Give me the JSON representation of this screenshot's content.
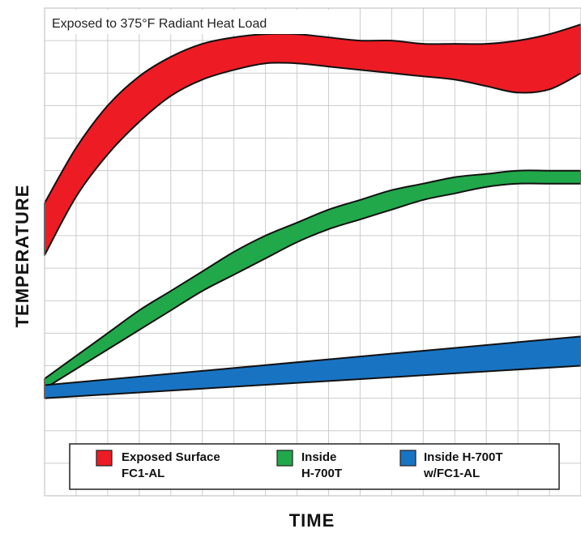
{
  "chart_data": {
    "type": "area",
    "title": "Exposed to 375°F Radiant Heat Load",
    "xlabel": "TIME",
    "ylabel": "TEMPERATURE",
    "grid": true,
    "xlim": [
      0,
      17
    ],
    "ylim": [
      0,
      15
    ],
    "legend_position": "bottom",
    "series": [
      {
        "name": "Exposed Surface FC1-AL",
        "color": "#ed1c24",
        "x": [
          0,
          1,
          2,
          3,
          4,
          5,
          6,
          7,
          8,
          9,
          10,
          11,
          12,
          13,
          14,
          15,
          16,
          17
        ],
        "upper": [
          9.0,
          10.7,
          12.0,
          12.9,
          13.5,
          13.9,
          14.1,
          14.2,
          14.2,
          14.1,
          14.0,
          14.0,
          13.9,
          13.9,
          13.9,
          14.0,
          14.2,
          14.5
        ],
        "lower": [
          7.4,
          9.2,
          10.5,
          11.5,
          12.3,
          12.8,
          13.1,
          13.3,
          13.3,
          13.2,
          13.1,
          13.0,
          12.9,
          12.8,
          12.6,
          12.4,
          12.5,
          13.0
        ]
      },
      {
        "name": "Inside H-700T",
        "color": "#21a84a",
        "x": [
          0,
          1,
          2,
          3,
          4,
          5,
          6,
          7,
          8,
          9,
          10,
          11,
          12,
          13,
          14,
          15,
          16,
          17
        ],
        "upper": [
          3.6,
          4.3,
          5.0,
          5.7,
          6.3,
          6.9,
          7.5,
          8.0,
          8.4,
          8.8,
          9.1,
          9.4,
          9.6,
          9.8,
          9.9,
          10.0,
          10.0,
          10.0
        ],
        "lower": [
          3.3,
          3.9,
          4.5,
          5.1,
          5.7,
          6.3,
          6.8,
          7.3,
          7.8,
          8.2,
          8.5,
          8.8,
          9.1,
          9.3,
          9.5,
          9.6,
          9.6,
          9.6
        ]
      },
      {
        "name": "Inside H-700T w/FC1-AL",
        "color": "#1874c2",
        "x": [
          0,
          17
        ],
        "upper": [
          3.4,
          4.9
        ],
        "lower": [
          3.0,
          4.0
        ]
      }
    ]
  },
  "legend": {
    "items": [
      {
        "line1": "Exposed Surface",
        "line2": "FC1-AL",
        "color": "#ed1c24"
      },
      {
        "line1": "Inside",
        "line2": "H-700T",
        "color": "#21a84a"
      },
      {
        "line1": "Inside H-700T",
        "line2": "w/FC1-AL",
        "color": "#1874c2"
      }
    ]
  }
}
